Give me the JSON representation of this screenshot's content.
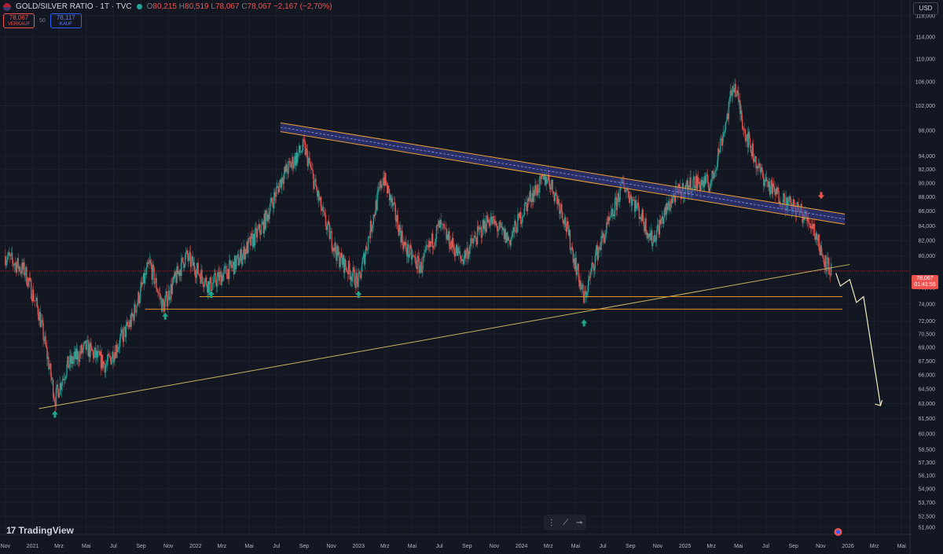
{
  "header": {
    "symbol": "GOLD/SILVER RATIO · 1T · TVC",
    "open_label": "O",
    "open": "80,215",
    "high_label": "H",
    "high": "80,519",
    "low_label": "L",
    "low": "78,067",
    "close_label": "C",
    "close": "78,067",
    "change": "−2,167 (−2,70%)"
  },
  "trade": {
    "sell_price": "78,067",
    "sell_label": "VERKAUF",
    "spread": "50",
    "buy_price": "78,117",
    "buy_label": "KAUF"
  },
  "currency": "USD",
  "brand": "TradingView",
  "last_price": {
    "value": "78,067",
    "countdown": "01:41:55"
  },
  "colors": {
    "background": "#131722",
    "up": "#26a69a",
    "down": "#ef5350",
    "trendline": "#f0a030",
    "support": "#e0952a",
    "arrow": "#1fa68b",
    "forecast": "#f3ecc4"
  },
  "chart_data": {
    "type": "candlestick",
    "title": "GOLD/SILVER RATIO · 1T · TVC",
    "x_tick_labels": [
      "Nov",
      "2021",
      "Mrz",
      "Mai",
      "Jul",
      "Sep",
      "Nov",
      "2022",
      "Mrz",
      "Mai",
      "Jul",
      "Sep",
      "Nov",
      "2023",
      "Mrz",
      "Mai",
      "Jul",
      "Sep",
      "Nov",
      "2024",
      "Mrz",
      "Mai",
      "Jul",
      "Sep",
      "Nov",
      "2025",
      "Mrz",
      "Mai",
      "Jul",
      "Sep",
      "Nov",
      "2026",
      "Mrz",
      "Mai"
    ],
    "y_tick_labels": [
      "118,000",
      "114,000",
      "110,000",
      "106,000",
      "102,000",
      "98,000",
      "94,000",
      "92,000",
      "90,000",
      "88,000",
      "86,000",
      "84,000",
      "82,000",
      "80,000",
      "76,000",
      "74,000",
      "72,000",
      "70,500",
      "69,000",
      "67,500",
      "66,000",
      "64,500",
      "63,000",
      "61,500",
      "60,000",
      "58,500",
      "57,300",
      "56,100",
      "54,900",
      "53,700",
      "52,500",
      "51,600"
    ],
    "y_scale": "log",
    "ylim": [
      51,
      121
    ],
    "price_path": [
      [
        "2020-11-01",
        80
      ],
      [
        "2020-12-15",
        78
      ],
      [
        "2021-01-15",
        73
      ],
      [
        "2021-02-20",
        63.5
      ],
      [
        "2021-03-20",
        67
      ],
      [
        "2021-05-01",
        69
      ],
      [
        "2021-06-15",
        67
      ],
      [
        "2021-08-10",
        72
      ],
      [
        "2021-09-20",
        79
      ],
      [
        "2021-10-20",
        73.6
      ],
      [
        "2021-12-10",
        80
      ],
      [
        "2022-02-01",
        76.2
      ],
      [
        "2022-04-01",
        79
      ],
      [
        "2022-06-01",
        84
      ],
      [
        "2022-07-15",
        91
      ],
      [
        "2022-09-01",
        95.5
      ],
      [
        "2022-10-15",
        85
      ],
      [
        "2022-11-15",
        80
      ],
      [
        "2023-01-01",
        76.6
      ],
      [
        "2023-02-25",
        91
      ],
      [
        "2023-04-15",
        81
      ],
      [
        "2023-05-20",
        78.5
      ],
      [
        "2023-07-01",
        84
      ],
      [
        "2023-08-20",
        79.5
      ],
      [
        "2023-10-20",
        85
      ],
      [
        "2023-12-05",
        82
      ],
      [
        "2024-01-20",
        88
      ],
      [
        "2024-02-28",
        91
      ],
      [
        "2024-04-01",
        86
      ],
      [
        "2024-05-20",
        74.5
      ],
      [
        "2024-06-15",
        80
      ],
      [
        "2024-07-20",
        85
      ],
      [
        "2024-08-15",
        90
      ],
      [
        "2024-09-20",
        86
      ],
      [
        "2024-10-20",
        82
      ],
      [
        "2024-12-05",
        88
      ],
      [
        "2025-01-20",
        90
      ],
      [
        "2025-03-01",
        90
      ],
      [
        "2025-04-05",
        100
      ],
      [
        "2025-04-20",
        106
      ],
      [
        "2025-05-15",
        98
      ],
      [
        "2025-06-15",
        92
      ],
      [
        "2025-07-15",
        89
      ],
      [
        "2025-08-20",
        87
      ],
      [
        "2025-09-15",
        86
      ],
      [
        "2025-10-15",
        84
      ],
      [
        "2025-11-05",
        80
      ],
      [
        "2025-11-25",
        78.067
      ]
    ],
    "last_value": 78.067,
    "last_date": "2025-11-25"
  }
}
